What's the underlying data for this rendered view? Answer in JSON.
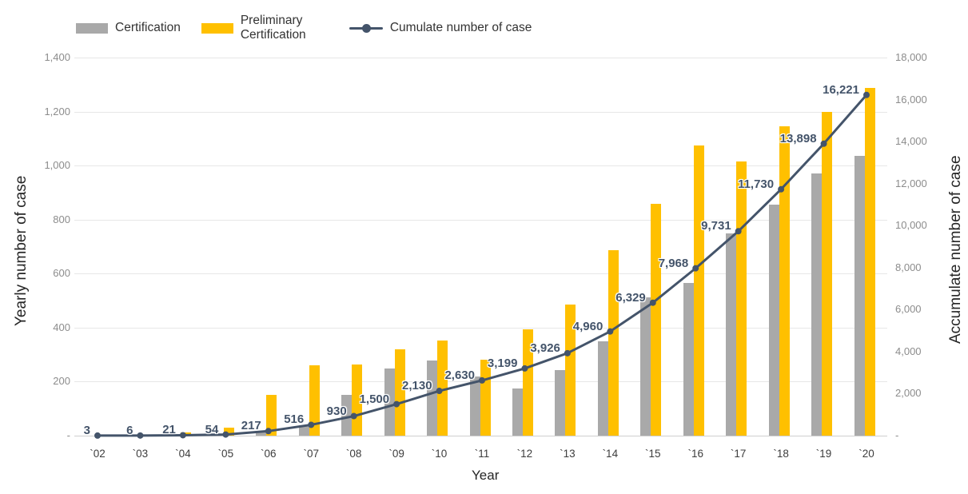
{
  "legend": {
    "certification_label": "Certification",
    "preliminary_label": "Preliminary Certification",
    "cumulate_label": "Cumulate number of case"
  },
  "colors": {
    "bar_gray": "#A9A9A9",
    "bar_yellow": "#FFC000",
    "line": "#44546A",
    "tick_text": "#8c8c8c"
  },
  "chart_data": {
    "type": "bar",
    "subtype": "combo-bar-line",
    "categories": [
      "`02",
      "`03",
      "`04",
      "`05",
      "`06",
      "`07",
      "`08",
      "`09",
      "`10",
      "`11",
      "`12",
      "`13",
      "`14",
      "`15",
      "`16",
      "`17",
      "`18",
      "`19",
      "`20"
    ],
    "series": [
      {
        "name": "Certification",
        "type": "bar",
        "axis": "left",
        "color": "#A9A9A9",
        "values": [
          0,
          0,
          2,
          3,
          12,
          39,
          152,
          250,
          277,
          218,
          176,
          242,
          348,
          512,
          565,
          748,
          855,
          970,
          1036
        ]
      },
      {
        "name": "Preliminary Certification",
        "type": "bar",
        "axis": "left",
        "color": "#FFC000",
        "values": [
          3,
          3,
          13,
          30,
          151,
          260,
          262,
          320,
          353,
          282,
          393,
          485,
          686,
          857,
          1074,
          1015,
          1144,
          1198,
          1287
        ]
      },
      {
        "name": "Cumulate number of case",
        "type": "line",
        "axis": "right",
        "color": "#44546A",
        "values": [
          3,
          6,
          21,
          54,
          217,
          516,
          930,
          1500,
          2130,
          2630,
          3199,
          3926,
          4960,
          6329,
          7968,
          9731,
          11730,
          13898,
          16221
        ],
        "labels": [
          "3",
          "6",
          "21",
          "54",
          "217",
          "516",
          "930",
          "1,500",
          "2,130",
          "2,630",
          "3,199",
          "3,926",
          "4,960",
          "6,329",
          "7,968",
          "9,731",
          "11,730",
          "13,898",
          "16,221"
        ]
      }
    ],
    "left_axis": {
      "title": "Yearly number of case",
      "min": 0,
      "max": 1400,
      "tick_values": [
        1400,
        1200,
        1000,
        800,
        600,
        400,
        200,
        0
      ],
      "tick_labels": [
        "1,400",
        "1,200",
        "1,000",
        "800",
        "600",
        "400",
        "200",
        "-"
      ]
    },
    "right_axis": {
      "title": "Accumulate number of case",
      "min": 0,
      "max": 18000,
      "tick_values": [
        18000,
        16000,
        14000,
        12000,
        10000,
        8000,
        6000,
        4000,
        2000,
        0
      ],
      "tick_labels": [
        "18,000",
        "16,000",
        "14,000",
        "12,000",
        "10,000",
        "8,000",
        "6,000",
        "4,000",
        "2,000",
        "-"
      ]
    },
    "x_axis": {
      "title": "Year"
    },
    "grid": true,
    "legend_position": "top-left"
  }
}
